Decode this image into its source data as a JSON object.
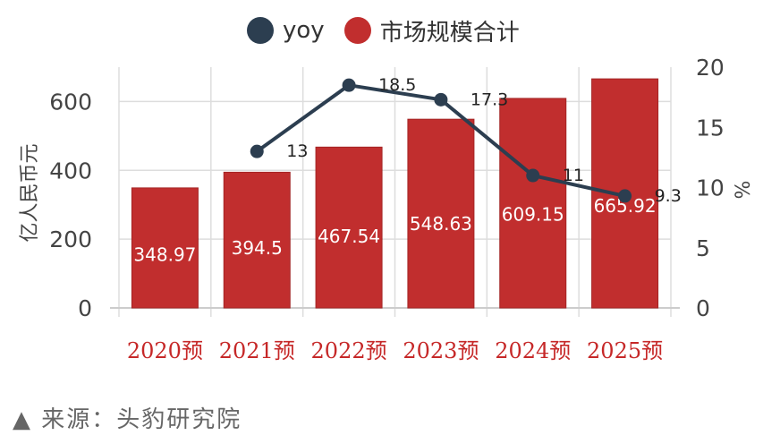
{
  "colors": {
    "bar": "#c12e2e",
    "bar_edge": "#a42424",
    "line": "#2c3e50",
    "tick_label_x": "#c62828",
    "axis_text": "#444444",
    "grid": "#dddddd"
  },
  "legend": {
    "items": [
      {
        "label": "yoy",
        "color": "#2c3e50"
      },
      {
        "label": "市场规模合计",
        "color": "#c12e2e"
      }
    ]
  },
  "source": {
    "icon": "triangle-icon",
    "text": "来源：头豹研究院"
  },
  "chart_data": {
    "type": "bar",
    "categories": [
      "2020预",
      "2021预",
      "2022预",
      "2023预",
      "2024预",
      "2025预"
    ],
    "series": [
      {
        "name": "市场规模合计",
        "type": "bar",
        "axis": "left",
        "values": [
          348.97,
          394.5,
          467.54,
          548.63,
          609.15,
          665.92
        ]
      },
      {
        "name": "yoy",
        "type": "line",
        "axis": "right",
        "values": [
          null,
          13,
          18.5,
          17.3,
          11,
          9.3
        ]
      }
    ],
    "bar_labels": [
      "348.97",
      "394.5",
      "467.54",
      "548.63",
      "609.15",
      "665.92"
    ],
    "line_labels": [
      "",
      "13",
      "18.5",
      "17.3",
      "11",
      "9.3"
    ],
    "ylabel_left": "亿人民币元",
    "ylabel_right": "%",
    "ylim_left": [
      0,
      700
    ],
    "yticks_left": [
      0,
      200,
      400,
      600
    ],
    "ylim_right": [
      0,
      20
    ],
    "yticks_right": [
      0,
      5,
      10,
      15,
      20
    ],
    "grid": true,
    "legend_position": "top"
  }
}
